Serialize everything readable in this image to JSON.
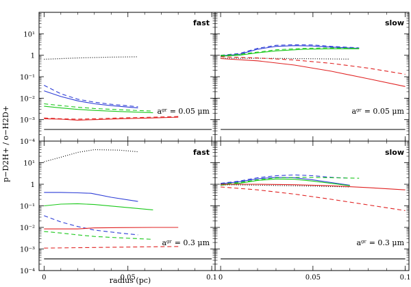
{
  "chart_data": {
    "type": "line",
    "xlabel": "radius (pc)",
    "ylabel": "p−D2H+ / o−H2D+",
    "xlim": [
      -0.003,
      0.102
    ],
    "ylim_log10": [
      -4,
      2
    ],
    "x_ticks": [
      {
        "value": 0,
        "label": "0"
      },
      {
        "value": 0.05,
        "label": "0.05"
      },
      {
        "value": 0.1,
        "label": "0.1"
      }
    ],
    "y_ticks": [
      {
        "exp": -4,
        "label": "10⁻⁴"
      },
      {
        "exp": -3,
        "label": "10⁻³"
      },
      {
        "exp": -2,
        "label": "10⁻²"
      },
      {
        "exp": -1,
        "label": "10⁻¹"
      },
      {
        "exp": 0,
        "label": "1"
      },
      {
        "exp": 1,
        "label": "10¹"
      }
    ],
    "panels": [
      {
        "label": "fast",
        "size_label": "aᵍʳ = 0.05 μm",
        "series": [
          {
            "name": "black-dotted",
            "color": "#000000",
            "dash": "dotted",
            "x": [
              0,
              0.02,
              0.04,
              0.056
            ],
            "y": [
              0.65,
              0.75,
              0.82,
              0.85
            ]
          },
          {
            "name": "blue-solid",
            "color": "#2b3bd6",
            "dash": "solid",
            "x": [
              0,
              0.01,
              0.02,
              0.03,
              0.04,
              0.056
            ],
            "y": [
              0.022,
              0.012,
              0.0075,
              0.0055,
              0.0045,
              0.0035
            ]
          },
          {
            "name": "blue-dashed",
            "color": "#2b3bd6",
            "dash": "dashed",
            "x": [
              0,
              0.01,
              0.02,
              0.03,
              0.04,
              0.056
            ],
            "y": [
              0.04,
              0.016,
              0.009,
              0.0065,
              0.0052,
              0.004
            ]
          },
          {
            "name": "green-solid",
            "color": "#19c819",
            "dash": "solid",
            "x": [
              0,
              0.01,
              0.02,
              0.03,
              0.045,
              0.065
            ],
            "y": [
              0.0042,
              0.0035,
              0.003,
              0.0027,
              0.0024,
              0.0021
            ]
          },
          {
            "name": "green-dashed",
            "color": "#19c819",
            "dash": "dashed",
            "x": [
              0,
              0.01,
              0.02,
              0.03,
              0.045,
              0.065
            ],
            "y": [
              0.0055,
              0.0045,
              0.0038,
              0.0033,
              0.0029,
              0.0025
            ]
          },
          {
            "name": "red-solid",
            "color": "#e02020",
            "dash": "solid",
            "x": [
              0,
              0.01,
              0.02,
              0.03,
              0.045,
              0.065,
              0.08
            ],
            "y": [
              0.0011,
              0.00105,
              0.00095,
              0.001,
              0.0011,
              0.0012,
              0.0013
            ]
          },
          {
            "name": "red-dashed",
            "color": "#e02020",
            "dash": "dashed",
            "x": [
              0,
              0.01,
              0.02,
              0.03,
              0.045,
              0.065,
              0.08
            ],
            "y": [
              0.0012,
              0.0011,
              0.00105,
              0.0011,
              0.0012,
              0.0013,
              0.0014
            ]
          },
          {
            "name": "black-baseline",
            "color": "#000000",
            "dash": "solid",
            "x": [
              0,
              0.1
            ],
            "y": [
              0.00035,
              0.00035
            ]
          }
        ]
      },
      {
        "label": "slow",
        "size_label": "aᵍʳ = 0.05 μm",
        "series": [
          {
            "name": "blue-solid",
            "color": "#2b3bd6",
            "dash": "solid",
            "x": [
              0,
              0.01,
              0.02,
              0.03,
              0.04,
              0.05,
              0.06,
              0.075
            ],
            "y": [
              0.95,
              1.1,
              1.9,
              2.6,
              2.8,
              2.7,
              2.4,
              2.1
            ]
          },
          {
            "name": "blue-dashed",
            "color": "#2b3bd6",
            "dash": "dashed",
            "x": [
              0,
              0.01,
              0.02,
              0.03,
              0.04,
              0.05,
              0.06,
              0.075
            ],
            "y": [
              1.0,
              1.2,
              2.1,
              2.9,
              3.1,
              3.0,
              2.6,
              2.2
            ]
          },
          {
            "name": "green-solid",
            "color": "#19c819",
            "dash": "solid",
            "x": [
              0,
              0.01,
              0.02,
              0.03,
              0.045,
              0.06,
              0.075
            ],
            "y": [
              0.9,
              1.0,
              1.3,
              1.6,
              1.9,
              2.0,
              2.0
            ]
          },
          {
            "name": "green-dashed",
            "color": "#19c819",
            "dash": "dashed",
            "x": [
              0,
              0.01,
              0.02,
              0.03,
              0.045,
              0.06,
              0.075
            ],
            "y": [
              1.0,
              1.1,
              1.4,
              1.8,
              2.1,
              2.2,
              2.1
            ]
          },
          {
            "name": "black-dotted",
            "color": "#000000",
            "dash": "dotted",
            "x": [
              0,
              0.02,
              0.04,
              0.055,
              0.07
            ],
            "y": [
              0.72,
              0.72,
              0.7,
              0.68,
              0.66
            ]
          },
          {
            "name": "red-solid",
            "color": "#e02020",
            "dash": "solid",
            "x": [
              0,
              0.02,
              0.04,
              0.06,
              0.08,
              0.1
            ],
            "y": [
              0.7,
              0.55,
              0.35,
              0.18,
              0.08,
              0.035
            ]
          },
          {
            "name": "red-dashed",
            "color": "#e02020",
            "dash": "dashed",
            "x": [
              0,
              0.02,
              0.04,
              0.06,
              0.08,
              0.1
            ],
            "y": [
              0.85,
              0.75,
              0.6,
              0.42,
              0.25,
              0.13
            ]
          },
          {
            "name": "black-baseline",
            "color": "#000000",
            "dash": "solid",
            "x": [
              0,
              0.1
            ],
            "y": [
              0.00035,
              0.00035
            ]
          }
        ]
      },
      {
        "label": "fast",
        "size_label": "aᵍʳ = 0.3 μm",
        "series": [
          {
            "name": "black-dotted",
            "color": "#000000",
            "dash": "dotted",
            "x": [
              0,
              0.01,
              0.02,
              0.03,
              0.045,
              0.056
            ],
            "y": [
              11,
              18,
              30,
              40,
              38,
              32
            ]
          },
          {
            "name": "blue-solid",
            "color": "#2b3bd6",
            "dash": "solid",
            "x": [
              0,
              0.01,
              0.02,
              0.028,
              0.04,
              0.056
            ],
            "y": [
              0.42,
              0.42,
              0.4,
              0.38,
              0.25,
              0.16
            ]
          },
          {
            "name": "blue-dashed",
            "color": "#2b3bd6",
            "dash": "dashed",
            "x": [
              0,
              0.01,
              0.02,
              0.03,
              0.045,
              0.056
            ],
            "y": [
              0.035,
              0.018,
              0.011,
              0.0075,
              0.0055,
              0.0045
            ]
          },
          {
            "name": "green-solid",
            "color": "#19c819",
            "dash": "solid",
            "x": [
              0,
              0.01,
              0.02,
              0.03,
              0.045,
              0.065
            ],
            "y": [
              0.1,
              0.12,
              0.125,
              0.115,
              0.09,
              0.065
            ]
          },
          {
            "name": "green-dashed",
            "color": "#19c819",
            "dash": "dashed",
            "x": [
              0,
              0.01,
              0.02,
              0.03,
              0.045,
              0.065
            ],
            "y": [
              0.0065,
              0.0055,
              0.0045,
              0.0038,
              0.0033,
              0.0028
            ]
          },
          {
            "name": "red-solid",
            "color": "#e02020",
            "dash": "solid",
            "x": [
              0,
              0.02,
              0.03,
              0.045,
              0.065,
              0.08
            ],
            "y": [
              0.0085,
              0.0085,
              0.0095,
              0.0098,
              0.01,
              0.01
            ]
          },
          {
            "name": "red-dashed",
            "color": "#e02020",
            "dash": "dashed",
            "x": [
              0,
              0.02,
              0.04,
              0.06,
              0.08
            ],
            "y": [
              0.0011,
              0.00115,
              0.0012,
              0.00125,
              0.0013
            ]
          },
          {
            "name": "black-baseline",
            "color": "#000000",
            "dash": "solid",
            "x": [
              0,
              0.1
            ],
            "y": [
              0.00035,
              0.00035
            ]
          }
        ]
      },
      {
        "label": "slow",
        "size_label": "aᵍʳ = 0.3 μm",
        "series": [
          {
            "name": "blue-solid",
            "color": "#2b3bd6",
            "dash": "solid",
            "x": [
              0,
              0.01,
              0.02,
              0.03,
              0.04,
              0.05,
              0.06,
              0.07
            ],
            "y": [
              1.05,
              1.3,
              1.8,
              2.1,
              2.0,
              1.6,
              1.2,
              0.9
            ]
          },
          {
            "name": "blue-dashed",
            "color": "#2b3bd6",
            "dash": "dashed",
            "x": [
              0,
              0.01,
              0.02,
              0.03,
              0.04,
              0.05,
              0.06,
              0.07
            ],
            "y": [
              1.1,
              1.4,
              2.0,
              2.5,
              2.7,
              2.5,
              2.1,
              1.9
            ]
          },
          {
            "name": "green-solid",
            "color": "#19c819",
            "dash": "solid",
            "x": [
              0,
              0.01,
              0.02,
              0.03,
              0.04,
              0.05,
              0.06,
              0.07
            ],
            "y": [
              0.9,
              1.1,
              1.5,
              1.75,
              1.7,
              1.4,
              1.1,
              0.85
            ]
          },
          {
            "name": "green-dashed",
            "color": "#19c819",
            "dash": "dashed",
            "x": [
              0,
              0.01,
              0.02,
              0.03,
              0.045,
              0.06,
              0.075
            ],
            "y": [
              1.0,
              1.2,
              1.6,
              2.0,
              2.1,
              2.0,
              1.9
            ]
          },
          {
            "name": "black-dotted",
            "color": "#000000",
            "dash": "dotted",
            "x": [
              0,
              0.02,
              0.04,
              0.055,
              0.07
            ],
            "y": [
              0.95,
              0.9,
              0.85,
              0.8,
              0.75
            ]
          },
          {
            "name": "red-solid",
            "color": "#e02020",
            "dash": "solid",
            "x": [
              0,
              0.02,
              0.04,
              0.06,
              0.08,
              0.1
            ],
            "y": [
              1.0,
              1.0,
              0.95,
              0.85,
              0.7,
              0.55
            ]
          },
          {
            "name": "red-dashed",
            "color": "#e02020",
            "dash": "dashed",
            "x": [
              0,
              0.02,
              0.04,
              0.06,
              0.08,
              0.1
            ],
            "y": [
              0.75,
              0.55,
              0.35,
              0.2,
              0.11,
              0.06
            ]
          },
          {
            "name": "black-baseline",
            "color": "#000000",
            "dash": "solid",
            "x": [
              0,
              0.1
            ],
            "y": [
              0.00035,
              0.00035
            ]
          }
        ]
      }
    ]
  }
}
